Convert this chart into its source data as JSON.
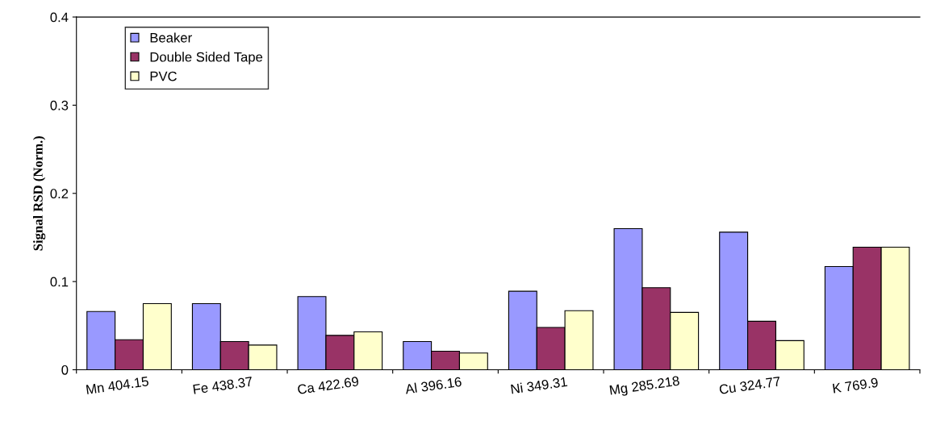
{
  "chart_data": {
    "type": "bar",
    "ylabel": "Signal RSD (Norm.)",
    "categories": [
      "Mn 404.15",
      "Fe 438.37",
      "Ca 422.69",
      "Al 396.16",
      "Ni 349.31",
      "Mg 285.218",
      "Cu 324.77",
      "K 769.9"
    ],
    "series": [
      {
        "name": "Beaker",
        "color": "#9999ff",
        "values": [
          0.066,
          0.075,
          0.083,
          0.032,
          0.089,
          0.16,
          0.156,
          0.117
        ]
      },
      {
        "name": "Double Sided Tape",
        "color": "#993366",
        "values": [
          0.034,
          0.032,
          0.039,
          0.021,
          0.048,
          0.093,
          0.055,
          0.139
        ]
      },
      {
        "name": "PVC",
        "color": "#ffffcc",
        "values": [
          0.075,
          0.028,
          0.043,
          0.019,
          0.067,
          0.065,
          0.033,
          0.139
        ]
      }
    ],
    "ylim": [
      0,
      0.4
    ],
    "yticks": [
      0,
      0.1,
      0.2,
      0.3,
      0.4
    ],
    "grid": false,
    "legend": "top left"
  }
}
